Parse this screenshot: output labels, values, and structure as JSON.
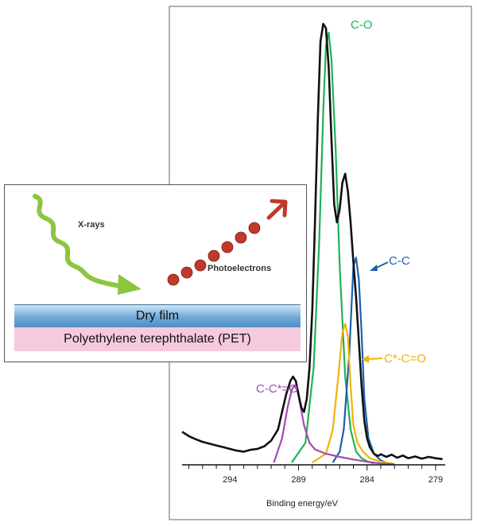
{
  "chart_data": {
    "type": "line",
    "title": "",
    "xlabel": "Binding energy/eV",
    "ylabel": "",
    "x_reversed": true,
    "xlim": [
      297.5,
      278.3
    ],
    "ylim": [
      0,
      100
    ],
    "x_ticks": [
      294,
      289,
      284,
      279
    ],
    "x_tick_labels": [
      "294",
      "289",
      "284",
      "279"
    ],
    "grid": false,
    "series": [
      {
        "name": "C-O",
        "color": "#1fb257",
        "x": [
          289.5,
          288.5,
          287.9,
          287.5,
          287.2,
          287.0,
          286.8,
          286.6,
          286.3,
          286.0,
          285.6,
          285.2,
          284.8,
          284.4,
          284.0,
          283.5
        ],
        "y": [
          0.5,
          5,
          22,
          50,
          80,
          95,
          98,
          92,
          72,
          45,
          20,
          8,
          3,
          1.5,
          0.8,
          0.3
        ]
      },
      {
        "name": "C-C",
        "color": "#1d5fae",
        "x": [
          286.5,
          286.0,
          285.7,
          285.3,
          285.0,
          284.8,
          284.6,
          284.4,
          284.2,
          283.9,
          283.5,
          283.0,
          282.5
        ],
        "y": [
          0.5,
          3,
          8,
          25,
          45,
          47,
          42,
          30,
          15,
          6,
          2.5,
          1,
          0.3
        ]
      },
      {
        "name": "C*-C=O",
        "color": "#f2b20a",
        "x": [
          288.0,
          287.0,
          286.5,
          286.1,
          285.8,
          285.6,
          285.4,
          285.2,
          285.0,
          284.7,
          284.3,
          283.8,
          283.0,
          282.0
        ],
        "y": [
          0.5,
          2.5,
          8,
          20,
          30,
          32,
          29,
          18,
          9,
          5,
          3,
          1.5,
          0.7,
          0.2
        ]
      },
      {
        "name": "C-C*=O",
        "color": "#a04bb0",
        "x": [
          290.8,
          290.2,
          289.8,
          289.5,
          289.3,
          289.1,
          288.9,
          288.6,
          288.2,
          287.8,
          287.0,
          286.0,
          285.0,
          284.0,
          283.0,
          282.0
        ],
        "y": [
          0.5,
          6,
          13,
          17,
          18,
          17,
          14,
          9,
          5,
          3.5,
          2.5,
          1.8,
          1.2,
          0.7,
          0.3,
          0.1
        ]
      },
      {
        "name": "",
        "color": "#111111",
        "role": "measured envelope",
        "x": [
          297.5,
          297.0,
          296.5,
          296.0,
          295.5,
          295.0,
          294.5,
          294.0,
          293.5,
          293.0,
          292.5,
          292.0,
          291.5,
          291.0,
          290.5,
          290.2,
          289.9,
          289.6,
          289.4,
          289.2,
          289.0,
          288.8,
          288.6,
          288.4,
          288.2,
          288.0,
          287.8,
          287.6,
          287.4,
          287.2,
          287.0,
          286.8,
          286.6,
          286.4,
          286.2,
          286.0,
          285.8,
          285.6,
          285.4,
          285.2,
          285.0,
          284.8,
          284.6,
          284.4,
          284.2,
          284.0,
          283.8,
          283.5,
          283.2,
          283.0,
          282.6,
          282.2,
          281.8,
          281.4,
          281.0,
          280.5,
          280.0,
          279.5,
          279.0,
          278.5
        ],
        "y": [
          7.5,
          6.5,
          5.8,
          5.2,
          4.8,
          4.4,
          4.0,
          3.6,
          3.2,
          3.0,
          3.4,
          3.6,
          4.2,
          5.5,
          8,
          12,
          16,
          19,
          20,
          19,
          16,
          13,
          12,
          15,
          22,
          35,
          55,
          78,
          96,
          100,
          99,
          90,
          74,
          59,
          55,
          58,
          64,
          66,
          62,
          55,
          46,
          38,
          28,
          18,
          10,
          6,
          4,
          2.5,
          2.0,
          2.4,
          1.8,
          2.3,
          1.6,
          2.1,
          1.5,
          1.9,
          1.4,
          1.8,
          1.5,
          1.3
        ]
      }
    ],
    "annotations": [
      {
        "text": "C-O",
        "color": "#1fb257"
      },
      {
        "text": "C-C",
        "color": "#1d5fae"
      },
      {
        "text": "C*-C=O",
        "color": "#f2b20a"
      },
      {
        "text": "C-C*=O",
        "color": "#a04bb0"
      }
    ]
  },
  "inset": {
    "xrays_label": "X-rays",
    "photoelectrons_label": "Photoelectrons",
    "film_label": "Dry film",
    "substrate_label": "Polyethylene terephthalate (PET)",
    "xray_color": "#8cc63f",
    "electron_color": "#c0392b"
  }
}
